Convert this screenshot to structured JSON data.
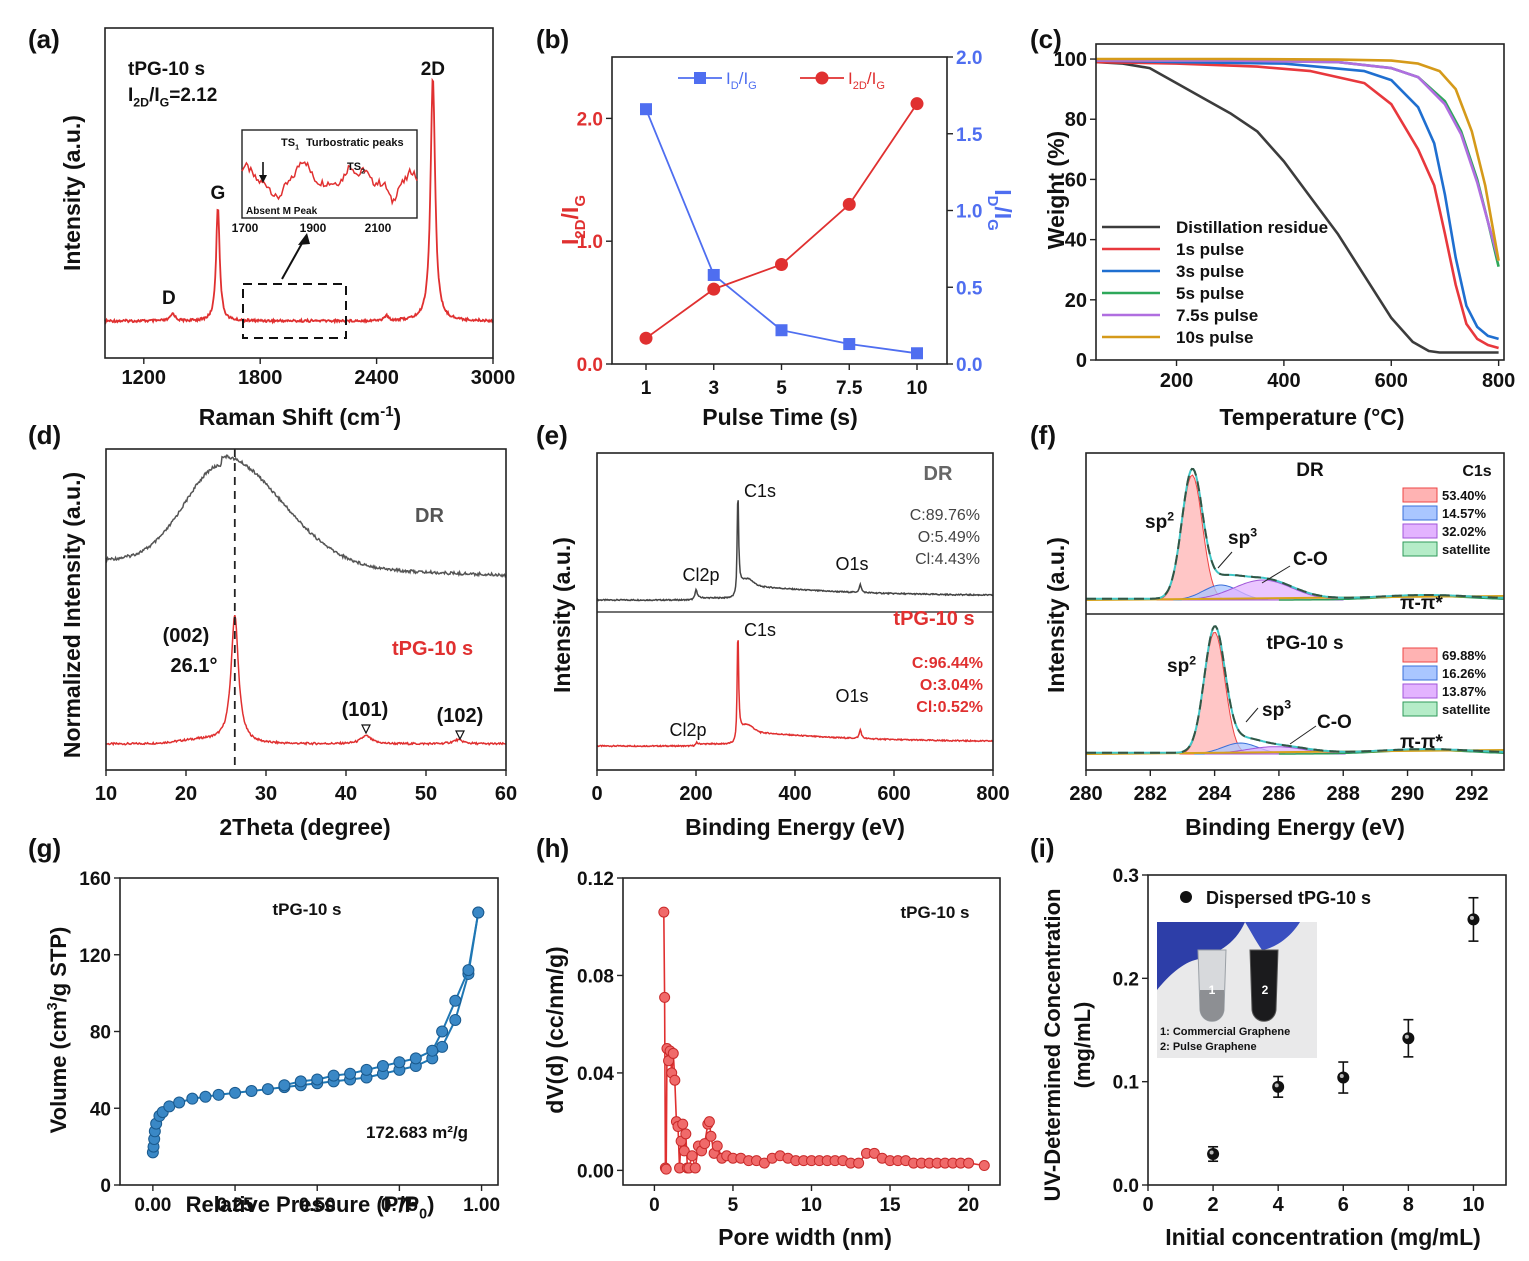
{
  "colors": {
    "red": "#e03030",
    "blue": "#4f6ef0",
    "dark": "#444444",
    "drGray": "#555555",
    "steel": "#1f77b4",
    "black": "#000000"
  },
  "chart_data": [
    {
      "id": "a",
      "type": "line",
      "panel_label": "(a)",
      "xlabel": "Raman Shift (cm",
      "xlabel_sup": "-1",
      "xlabel_tail": ")",
      "ylabel": "Intensity (a.u.)",
      "xlim": [
        1000,
        3000
      ],
      "xticks": [
        "1200",
        "1800",
        "2400",
        "3000"
      ],
      "xtick_values": [
        1200,
        1800,
        2400,
        3000
      ],
      "sample": "tPG-10 s",
      "ratio_main": "I",
      "ratio_sub1": "2D",
      "ratio_mid": "/I",
      "ratio_sub2": "G",
      "ratio_value": "=2.12",
      "peak_labels": [
        {
          "text": "D",
          "x": 1350
        },
        {
          "text": "G",
          "x": 1582
        },
        {
          "text": "2D",
          "x": 2690
        }
      ],
      "inset": {
        "title": "Turbostratic peaks",
        "ts1": "TS",
        "ts1_sub": "1",
        "ts2": "TS",
        "ts2_sub": "2",
        "absent": "Absent M Peak",
        "xticks": [
          "1700",
          "1900",
          "2100"
        ]
      },
      "peaks": [
        {
          "x": 1350,
          "height": 0.03,
          "width": 14
        },
        {
          "x": 1582,
          "height": 0.47,
          "width": 11
        },
        {
          "x": 2450,
          "height": 0.02,
          "width": 12
        },
        {
          "x": 2690,
          "height": 1.0,
          "width": 14
        }
      ]
    },
    {
      "id": "b",
      "type": "line",
      "panel_label": "(b)",
      "xlabel": "Pulse Time (s)",
      "categories": [
        "1",
        "3",
        "5",
        "7.5",
        "10"
      ],
      "ylabel_left": "I",
      "ylabel_left_sub1": "2D",
      "ylabel_left_mid": "/I",
      "ylabel_left_sub2": "G",
      "ylabel_right": "I",
      "ylabel_right_sub1": "D",
      "ylabel_right_mid": "/I",
      "ylabel_right_sub2": "G",
      "ylim_left": [
        0,
        2.5
      ],
      "ylim_right": [
        0,
        2.0
      ],
      "yticks_left": [
        "0.0",
        "1.0",
        "2.0"
      ],
      "yticks_right": [
        "0.0",
        "0.5",
        "1.0",
        "1.5",
        "2.0"
      ],
      "series": [
        {
          "name": "I_D/I_G",
          "label_main": "I",
          "label_sub1": "D",
          "label_mid": "/I",
          "label_sub2": "G",
          "axis": "right",
          "marker": "square",
          "values": [
            1.66,
            0.58,
            0.22,
            0.13,
            0.07
          ]
        },
        {
          "name": "I_2D/I_G",
          "label_main": "I",
          "label_sub1": "2D",
          "label_mid": "/I",
          "label_sub2": "G",
          "axis": "left",
          "marker": "circle",
          "values": [
            0.21,
            0.61,
            0.81,
            1.3,
            2.12
          ]
        }
      ]
    },
    {
      "id": "c",
      "type": "line",
      "panel_label": "(c)",
      "xlabel": "Temperature (°C)",
      "ylabel": "Weight (%)",
      "xlim": [
        50,
        810
      ],
      "ylim": [
        0,
        105
      ],
      "xticks": [
        "200",
        "400",
        "600",
        "800"
      ],
      "yticks": [
        "0",
        "20",
        "40",
        "60",
        "80",
        "100"
      ],
      "series": [
        {
          "name": "Distillation residue",
          "color": "#3c3c3c",
          "x": [
            50,
            100,
            150,
            200,
            250,
            300,
            350,
            400,
            450,
            500,
            550,
            600,
            640,
            670,
            690,
            720,
            800
          ],
          "y": [
            99,
            98.5,
            97,
            92,
            87,
            82,
            76,
            66,
            54,
            42,
            28,
            14,
            6,
            3,
            2.5,
            2.5,
            2.5
          ]
        },
        {
          "name": "1s pulse",
          "color": "#e8383d",
          "x": [
            50,
            200,
            350,
            450,
            550,
            600,
            650,
            680,
            700,
            720,
            740,
            760,
            780,
            800
          ],
          "y": [
            99,
            98.5,
            97.5,
            96,
            92,
            85,
            70,
            58,
            42,
            25,
            12,
            7,
            5,
            4
          ]
        },
        {
          "name": "3s pulse",
          "color": "#1f6fd0",
          "x": [
            50,
            200,
            400,
            550,
            600,
            650,
            680,
            700,
            720,
            740,
            760,
            780,
            800
          ],
          "y": [
            99.5,
            99,
            98.5,
            96,
            93,
            84,
            72,
            55,
            34,
            18,
            11,
            8,
            7
          ]
        },
        {
          "name": "5s pulse",
          "color": "#2ea85a",
          "x": [
            50,
            300,
            500,
            600,
            650,
            700,
            730,
            760,
            780,
            800
          ],
          "y": [
            99.5,
            99.5,
            99,
            97,
            94,
            86,
            76,
            60,
            46,
            31
          ]
        },
        {
          "name": "7.5s pulse",
          "color": "#b06ee0",
          "x": [
            50,
            300,
            500,
            600,
            650,
            700,
            730,
            760,
            780,
            800
          ],
          "y": [
            99.5,
            99.5,
            99,
            97,
            94,
            85,
            75,
            59,
            46,
            33
          ]
        },
        {
          "name": "10s pulse",
          "color": "#d59a1a",
          "x": [
            50,
            300,
            500,
            600,
            650,
            690,
            720,
            750,
            775,
            800
          ],
          "y": [
            100,
            100,
            99.8,
            99.5,
            98.5,
            96,
            90,
            76,
            58,
            33
          ]
        }
      ]
    },
    {
      "id": "d",
      "type": "line",
      "panel_label": "(d)",
      "xlabel": "2Theta (degree)",
      "ylabel": "Normalized Intensity (a.u.)",
      "xlim": [
        10,
        60
      ],
      "xticks": [
        "10",
        "20",
        "30",
        "40",
        "50",
        "60"
      ],
      "series": [
        {
          "name": "DR",
          "color": "#555555"
        },
        {
          "name": "tPG-10 s",
          "color": "#e03030"
        }
      ],
      "annotations": [
        {
          "text": "(002)",
          "x": 26.1
        },
        {
          "text": "26.1°",
          "x": 26.1
        },
        {
          "text": "(101)",
          "x": 42.5
        },
        {
          "text": "(102)",
          "x": 54
        }
      ]
    },
    {
      "id": "e",
      "type": "line",
      "panel_label": "(e)",
      "xlabel": "Binding Energy (eV)",
      "ylabel": "Intensity (a.u.)",
      "xlim": [
        0,
        800
      ],
      "xticks": [
        "0",
        "200",
        "400",
        "600",
        "800"
      ],
      "series": [
        {
          "name": "DR",
          "color": "#444444",
          "composition": [
            "C:89.76%",
            "O:5.49%",
            "Cl:4.43%"
          ],
          "peaks": [
            "Cl2p",
            "C1s",
            "O1s"
          ]
        },
        {
          "name": "tPG-10 s",
          "color": "#e03030",
          "composition": [
            "C:96.44%",
            "O:3.04%",
            "Cl:0.52%"
          ],
          "peaks": [
            "Cl2p",
            "C1s",
            "O1s"
          ]
        }
      ]
    },
    {
      "id": "f",
      "type": "line",
      "panel_label": "(f)",
      "xlabel": "Binding Energy (eV)",
      "ylabel": "Intensity (a.u.)",
      "xlim": [
        280,
        293
      ],
      "xticks": [
        "280",
        "282",
        "284",
        "286",
        "288",
        "290",
        "292"
      ],
      "core_level": "C1s",
      "component_labels": {
        "sp2": "sp",
        "sp2_sup": "2",
        "sp3": "sp",
        "sp3_sup": "3",
        "co": "C-O",
        "pi": "π-π*"
      },
      "samples": [
        {
          "name": "DR",
          "legend": [
            "53.40%",
            "14.57%",
            "32.02%",
            "satellite"
          ],
          "sp2_center": 283.3,
          "sp2_height": 1.0,
          "sp3_center": 284.2,
          "sp3_height": 0.12,
          "co_center": 285.5,
          "co_height": 0.16
        },
        {
          "name": "tPG-10 s",
          "legend": [
            "69.88%",
            "16.26%",
            "13.87%",
            "satellite"
          ],
          "sp2_center": 284.0,
          "sp2_height": 1.0,
          "sp3_center": 284.8,
          "sp3_height": 0.09,
          "co_center": 285.9,
          "co_height": 0.06
        }
      ]
    },
    {
      "id": "g",
      "type": "line",
      "panel_label": "(g)",
      "xlabel": "Relative Pressure (P/P",
      "xlabel_sub": "0",
      "xlabel_tail": ")",
      "ylabel": "Volume (cm",
      "ylabel_sup": "3",
      "ylabel_tail": "/g STP)",
      "sample": "tPG-10 s",
      "surface_area": "172.683 m²/g",
      "xlim": [
        -0.1,
        1.05
      ],
      "ylim": [
        0,
        160
      ],
      "xticks": [
        "0.00",
        "0.25",
        "0.50",
        "0.75",
        "1.00"
      ],
      "xtick_values": [
        0,
        0.25,
        0.5,
        0.75,
        1.0
      ],
      "yticks": [
        "0",
        "40",
        "80",
        "120",
        "160"
      ],
      "series": [
        {
          "name": "adsorption",
          "x": [
            0.0,
            0.002,
            0.004,
            0.006,
            0.01,
            0.02,
            0.03,
            0.05,
            0.08,
            0.12,
            0.16,
            0.2,
            0.25,
            0.3,
            0.35,
            0.4,
            0.45,
            0.5,
            0.55,
            0.6,
            0.65,
            0.7,
            0.75,
            0.8,
            0.85,
            0.88,
            0.92,
            0.96,
            0.99
          ],
          "y": [
            17,
            20,
            24,
            28,
            32,
            36,
            38,
            41,
            43,
            45,
            46,
            47,
            48,
            49,
            50,
            51,
            52,
            53,
            54,
            55,
            56,
            58,
            60,
            62,
            66,
            72,
            86,
            110,
            142
          ]
        },
        {
          "name": "desorption",
          "x": [
            0.99,
            0.96,
            0.92,
            0.88,
            0.85,
            0.8,
            0.75,
            0.7,
            0.65,
            0.6,
            0.55,
            0.5,
            0.45,
            0.4
          ],
          "y": [
            142,
            112,
            96,
            80,
            70,
            66,
            64,
            62,
            60,
            58,
            57,
            55,
            54,
            52
          ]
        }
      ]
    },
    {
      "id": "h",
      "type": "line",
      "panel_label": "(h)",
      "xlabel": "Pore width (nm)",
      "ylabel": "dV(d) (cc/nm/g)",
      "sample": "tPG-10 s",
      "xlim": [
        -2,
        22
      ],
      "ylim": [
        -0.006,
        0.12
      ],
      "xticks": [
        "0",
        "5",
        "10",
        "15",
        "20"
      ],
      "xtick_values": [
        0,
        5,
        10,
        15,
        20
      ],
      "yticks": [
        "0.00",
        "0.04",
        "0.08",
        "0.12"
      ],
      "ytick_values": [
        0,
        0.04,
        0.08,
        0.12
      ],
      "x": [
        0.6,
        0.65,
        0.7,
        0.75,
        0.8,
        0.9,
        1.0,
        1.1,
        1.2,
        1.3,
        1.4,
        1.5,
        1.6,
        1.7,
        1.8,
        1.9,
        2.0,
        2.1,
        2.2,
        2.4,
        2.6,
        2.8,
        3.0,
        3.2,
        3.4,
        3.5,
        3.6,
        3.8,
        4.0,
        4.3,
        4.6,
        5.0,
        5.5,
        6.0,
        6.5,
        7.0,
        7.5,
        8.0,
        8.5,
        9.0,
        9.5,
        10.0,
        10.5,
        11.0,
        11.5,
        12.0,
        12.5,
        13.0,
        13.5,
        14.0,
        14.5,
        15.0,
        15.5,
        16.0,
        16.5,
        17.0,
        17.5,
        18.0,
        18.5,
        19.0,
        19.5,
        20.0,
        21.0
      ],
      "y": [
        0.106,
        0.071,
        0.001,
        0.0005,
        0.05,
        0.045,
        0.049,
        0.04,
        0.048,
        0.037,
        0.02,
        0.018,
        0.001,
        0.012,
        0.019,
        0.008,
        0.015,
        0.001,
        0.001,
        0.006,
        0.001,
        0.01,
        0.008,
        0.011,
        0.019,
        0.02,
        0.014,
        0.007,
        0.01,
        0.005,
        0.006,
        0.005,
        0.005,
        0.004,
        0.004,
        0.003,
        0.005,
        0.006,
        0.005,
        0.004,
        0.004,
        0.004,
        0.004,
        0.004,
        0.004,
        0.004,
        0.003,
        0.003,
        0.007,
        0.007,
        0.005,
        0.004,
        0.004,
        0.004,
        0.003,
        0.003,
        0.003,
        0.003,
        0.003,
        0.003,
        0.003,
        0.003,
        0.002
      ]
    },
    {
      "id": "i",
      "type": "scatter",
      "panel_label": "(i)",
      "xlabel": "Initial concentration (mg/mL)",
      "ylabel_line1": "UV-Determined Concentration",
      "ylabel_line2": "(mg/mL)",
      "xlim": [
        0,
        11
      ],
      "ylim": [
        0,
        0.3
      ],
      "xticks": [
        "0",
        "2",
        "4",
        "6",
        "8",
        "10"
      ],
      "xtick_values": [
        0,
        2,
        4,
        6,
        8,
        10
      ],
      "yticks": [
        "0.0",
        "0.1",
        "0.2",
        "0.3"
      ],
      "ytick_values": [
        0,
        0.1,
        0.2,
        0.3
      ],
      "series": [
        {
          "name": "Dispersed tPG-10 s",
          "x": [
            2,
            4,
            6,
            8,
            10
          ],
          "y": [
            0.03,
            0.095,
            0.104,
            0.142,
            0.257
          ],
          "err": [
            0.007,
            0.01,
            0.015,
            0.018,
            0.021
          ]
        }
      ],
      "inset": {
        "tube1": "1",
        "tube2": "2",
        "caption1": "1: Commercial Graphene",
        "caption2": "2: Pulse Graphene"
      }
    }
  ]
}
